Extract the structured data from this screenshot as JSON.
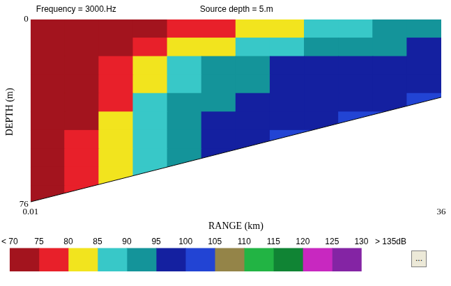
{
  "chart_data": {
    "type": "heatmap",
    "title": "Frequency = 3000.Hz",
    "subtitle": "Source depth = 5.m",
    "x_label": "RANGE (km)",
    "y_label": "DEPTH (m)",
    "xlim": [
      0.01,
      36
    ],
    "xticks": [
      0.01,
      36
    ],
    "ylim": [
      0,
      76
    ],
    "yticks": [
      0,
      76
    ],
    "grid": false,
    "bottom": {
      "x": [
        0.01,
        36
      ],
      "y": [
        75,
        32
      ]
    },
    "cells": {
      "x": [
        0.01,
        3,
        6,
        9,
        12,
        15,
        18,
        21,
        24,
        27,
        30,
        33,
        36
      ],
      "y": [
        0,
        7.6,
        15.2,
        22.8,
        30.4,
        38,
        45.6,
        53.2,
        60.8,
        68.4,
        76
      ],
      "values": [
        [
          72,
          72,
          72,
          72,
          77,
          77,
          82,
          82,
          87,
          87,
          92,
          92
        ],
        [
          72,
          72,
          72,
          77,
          82,
          82,
          87,
          87,
          92,
          92,
          92,
          97
        ],
        [
          72,
          72,
          77,
          82,
          87,
          92,
          92,
          97,
          97,
          97,
          97,
          97
        ],
        [
          72,
          72,
          77,
          82,
          87,
          92,
          92,
          97,
          97,
          97,
          97,
          97
        ],
        [
          72,
          72,
          77,
          87,
          92,
          92,
          97,
          97,
          97,
          97,
          97,
          102
        ],
        [
          72,
          72,
          82,
          87,
          92,
          97,
          97,
          97,
          97,
          102,
          102,
          null
        ],
        [
          72,
          77,
          82,
          87,
          92,
          97,
          97,
          102,
          102,
          null,
          null,
          null
        ],
        [
          72,
          77,
          82,
          87,
          92,
          97,
          97,
          null,
          null,
          null,
          null,
          null
        ],
        [
          72,
          77,
          82,
          87,
          null,
          null,
          null,
          null,
          null,
          null,
          null,
          null
        ],
        [
          72,
          77,
          null,
          null,
          null,
          null,
          null,
          null,
          null,
          null,
          null,
          null
        ]
      ]
    },
    "colorbar": {
      "xlim": [
        70,
        135
      ],
      "ticks": [
        {
          "value": 70,
          "label": "< 70"
        },
        75,
        80,
        85,
        90,
        95,
        100,
        105,
        110,
        115,
        120,
        125,
        130,
        {
          "value": 135,
          "label": "> 135dB"
        }
      ],
      "colors": [
        "#a3141e",
        "#e8202a",
        "#f2e41e",
        "#38c8c8",
        "#14949a",
        "#1420a0",
        "#2244d4",
        "#948448",
        "#22b444",
        "#108434",
        "#c828c0",
        "#8424a4",
        "#ffffff"
      ],
      "button": "..."
    }
  }
}
